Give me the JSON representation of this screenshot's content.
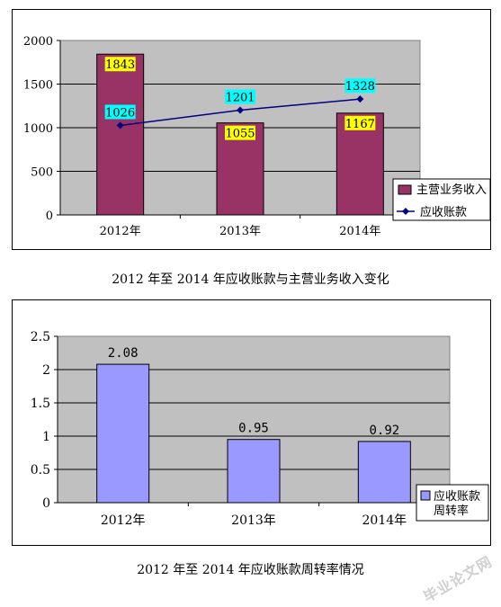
{
  "chart_data": [
    {
      "type": "bar",
      "categories": [
        "2012年",
        "2013年",
        "2014年"
      ],
      "series": [
        {
          "name": "主营业务收入",
          "type": "bar",
          "values": [
            1843,
            1055,
            1167
          ],
          "color": "#993366"
        },
        {
          "name": "应收账款",
          "type": "line",
          "values": [
            1026,
            1201,
            1328
          ],
          "color": "#000080"
        }
      ],
      "ylim": [
        0,
        2000
      ],
      "yticks": [
        "0",
        "500",
        "1000",
        "1500",
        "2000"
      ],
      "bar_label_bg": "#ffff00",
      "line_label_bg": "#00ffff",
      "plot_bg": "#c0c0c0",
      "grid": true,
      "legend_position": "bottom-right",
      "title": "2012 年至 2014 年应收账款与主营业务收入变化"
    },
    {
      "type": "bar",
      "categories": [
        "2012年",
        "2013年",
        "2014年"
      ],
      "series": [
        {
          "name": "应收账款周转率",
          "type": "bar",
          "values": [
            2.08,
            0.95,
            0.92
          ],
          "color": "#9999ff"
        }
      ],
      "value_labels": [
        "2.08",
        "0.95",
        "0.92"
      ],
      "ylim": [
        0,
        2.5
      ],
      "yticks": [
        "0",
        "0.5",
        "1",
        "1.5",
        "2",
        "2.5"
      ],
      "plot_bg": "#c0c0c0",
      "grid": true,
      "legend_position": "bottom-right",
      "title": "2012 年至 2014 年应收账款周转率情况"
    }
  ],
  "watermark": "毕业论文网"
}
